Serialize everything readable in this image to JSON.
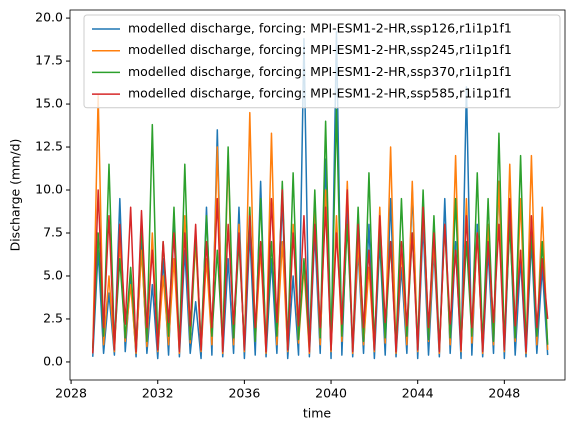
{
  "chart_data": {
    "type": "line",
    "xlabel": "time",
    "ylabel": "Discharge (mm/d)",
    "x": [
      2029,
      2029.25,
      2029.5,
      2029.75,
      2030,
      2030.25,
      2030.5,
      2030.75,
      2031,
      2031.25,
      2031.5,
      2031.75,
      2032,
      2032.25,
      2032.5,
      2032.75,
      2033,
      2033.25,
      2033.5,
      2033.75,
      2034,
      2034.25,
      2034.5,
      2034.75,
      2035,
      2035.25,
      2035.5,
      2035.75,
      2036,
      2036.25,
      2036.5,
      2036.75,
      2037,
      2037.25,
      2037.5,
      2037.75,
      2038,
      2038.25,
      2038.5,
      2038.75,
      2039,
      2039.25,
      2039.5,
      2039.75,
      2040,
      2040.25,
      2040.5,
      2040.75,
      2041,
      2041.25,
      2041.5,
      2041.75,
      2042,
      2042.25,
      2042.5,
      2042.75,
      2043,
      2043.25,
      2043.5,
      2043.75,
      2044,
      2044.25,
      2044.5,
      2044.75,
      2045,
      2045.25,
      2045.5,
      2045.75,
      2046,
      2046.25,
      2046.5,
      2046.75,
      2047,
      2047.25,
      2047.5,
      2047.75,
      2048,
      2048.25,
      2048.5,
      2048.75,
      2049,
      2049.25,
      2049.5,
      2049.75,
      2050
    ],
    "series": [
      {
        "name": "modelled discharge, forcing: MPI-ESM1-2-HR,ssp126,r1i1p1f1",
        "color": "#1f77b4",
        "values": [
          0.3,
          6.5,
          0.5,
          4.0,
          0.4,
          9.5,
          0.6,
          5.0,
          0.3,
          7.0,
          0.5,
          4.5,
          0.2,
          6.0,
          0.4,
          8.0,
          0.3,
          6.5,
          0.5,
          3.5,
          0.2,
          9.0,
          0.4,
          13.5,
          0.3,
          6.0,
          0.5,
          9.0,
          0.2,
          7.5,
          0.4,
          10.5,
          0.3,
          6.0,
          0.5,
          9.5,
          0.2,
          5.0,
          0.4,
          18.8,
          0.3,
          7.5,
          0.5,
          11.8,
          0.2,
          19.2,
          0.4,
          9.0,
          0.3,
          6.5,
          0.5,
          8.0,
          0.2,
          7.0,
          0.4,
          9.5,
          0.3,
          5.5,
          0.5,
          10.0,
          0.2,
          8.0,
          0.4,
          6.5,
          0.3,
          9.5,
          0.5,
          7.0,
          0.2,
          16.0,
          0.4,
          8.0,
          0.3,
          6.5,
          0.5,
          10.5,
          0.2,
          8.5,
          0.4,
          6.0,
          0.3,
          7.0,
          0.5,
          5.5,
          0.4
        ]
      },
      {
        "name": "modelled discharge, forcing: MPI-ESM1-2-HR,ssp245,r1i1p1f1",
        "color": "#ff7f0e",
        "values": [
          0.5,
          15.5,
          1.0,
          5.0,
          0.6,
          7.0,
          1.2,
          4.5,
          0.5,
          6.5,
          0.9,
          7.5,
          0.6,
          5.0,
          1.0,
          6.0,
          0.5,
          8.5,
          1.1,
          7.0,
          0.6,
          6.0,
          1.0,
          12.5,
          0.5,
          12.0,
          1.0,
          8.0,
          0.6,
          14.5,
          1.2,
          6.5,
          0.5,
          13.3,
          1.0,
          7.0,
          0.6,
          8.0,
          1.1,
          5.5,
          0.5,
          9.0,
          1.0,
          10.0,
          0.6,
          8.5,
          1.2,
          10.5,
          0.5,
          7.0,
          1.0,
          5.5,
          0.6,
          9.0,
          1.1,
          12.5,
          0.5,
          6.5,
          1.0,
          10.5,
          0.6,
          9.0,
          1.2,
          7.0,
          0.5,
          8.0,
          1.0,
          12.0,
          0.6,
          9.5,
          1.1,
          7.5,
          0.5,
          8.0,
          1.0,
          10.5,
          0.6,
          11.5,
          1.2,
          9.5,
          0.5,
          12.0,
          1.0,
          9.0,
          0.7
        ]
      },
      {
        "name": "modelled discharge, forcing: MPI-ESM1-2-HR,ssp370,r1i1p1f1",
        "color": "#2ca02c",
        "values": [
          0.8,
          7.5,
          1.5,
          11.5,
          1.0,
          6.0,
          1.4,
          5.5,
          0.9,
          8.0,
          1.2,
          13.8,
          1.0,
          7.0,
          1.5,
          9.0,
          0.8,
          11.5,
          1.3,
          7.5,
          1.0,
          8.5,
          1.5,
          6.5,
          0.9,
          12.5,
          1.4,
          7.0,
          1.0,
          9.0,
          1.2,
          9.5,
          0.8,
          7.0,
          1.5,
          10.5,
          1.0,
          11.0,
          1.3,
          6.0,
          0.9,
          10.0,
          1.4,
          14.0,
          1.0,
          14.7,
          1.5,
          8.0,
          0.8,
          9.0,
          1.2,
          11.0,
          1.0,
          7.5,
          1.4,
          7.0,
          0.9,
          9.5,
          1.5,
          7.5,
          1.0,
          10.0,
          1.3,
          8.5,
          0.8,
          8.0,
          1.4,
          9.5,
          1.0,
          7.0,
          1.5,
          11.0,
          0.9,
          9.5,
          1.2,
          13.3,
          1.0,
          8.0,
          1.4,
          12.0,
          0.9,
          7.5,
          1.5,
          7.0,
          1.0
        ]
      },
      {
        "name": "modelled discharge, forcing: MPI-ESM1-2-HR,ssp585,r1i1p1f1",
        "color": "#d62728",
        "values": [
          0.5,
          10.0,
          2.0,
          8.5,
          0.7,
          8.0,
          2.2,
          9.0,
          0.6,
          8.8,
          2.0,
          6.5,
          0.7,
          7.0,
          2.3,
          7.5,
          0.6,
          7.5,
          2.1,
          8.0,
          0.7,
          7.0,
          2.0,
          9.5,
          0.6,
          8.0,
          2.2,
          7.5,
          0.7,
          8.5,
          2.0,
          7.0,
          0.6,
          9.5,
          2.3,
          10.0,
          0.7,
          7.5,
          2.1,
          8.5,
          0.6,
          8.0,
          2.0,
          9.0,
          0.7,
          7.5,
          2.2,
          10.0,
          0.6,
          8.0,
          2.0,
          6.5,
          0.7,
          8.5,
          2.3,
          7.0,
          0.6,
          7.0,
          2.1,
          7.5,
          0.7,
          9.0,
          2.0,
          7.5,
          0.6,
          8.0,
          2.2,
          6.5,
          0.7,
          8.5,
          2.0,
          7.5,
          0.6,
          7.0,
          2.3,
          8.0,
          0.7,
          9.5,
          2.1,
          6.5,
          0.6,
          8.5,
          2.0,
          6.0,
          2.5
        ]
      }
    ],
    "xlim": [
      2027.95,
      2050.8
    ],
    "xticks": [
      2028,
      2032,
      2036,
      2040,
      2044,
      2048
    ],
    "ylim": [
      -1.05,
      20.47
    ],
    "yticks": [
      {
        "value": 0,
        "label": "0.0"
      },
      {
        "value": 2.5,
        "label": "2.5"
      },
      {
        "value": 5,
        "label": "5.0"
      },
      {
        "value": 7.5,
        "label": "7.5"
      },
      {
        "value": 10,
        "label": "10.0"
      },
      {
        "value": 12.5,
        "label": "12.5"
      },
      {
        "value": 15,
        "label": "15.0"
      },
      {
        "value": 17.5,
        "label": "17.5"
      },
      {
        "value": 20,
        "label": "20.0"
      }
    ],
    "legend": "upper right"
  }
}
